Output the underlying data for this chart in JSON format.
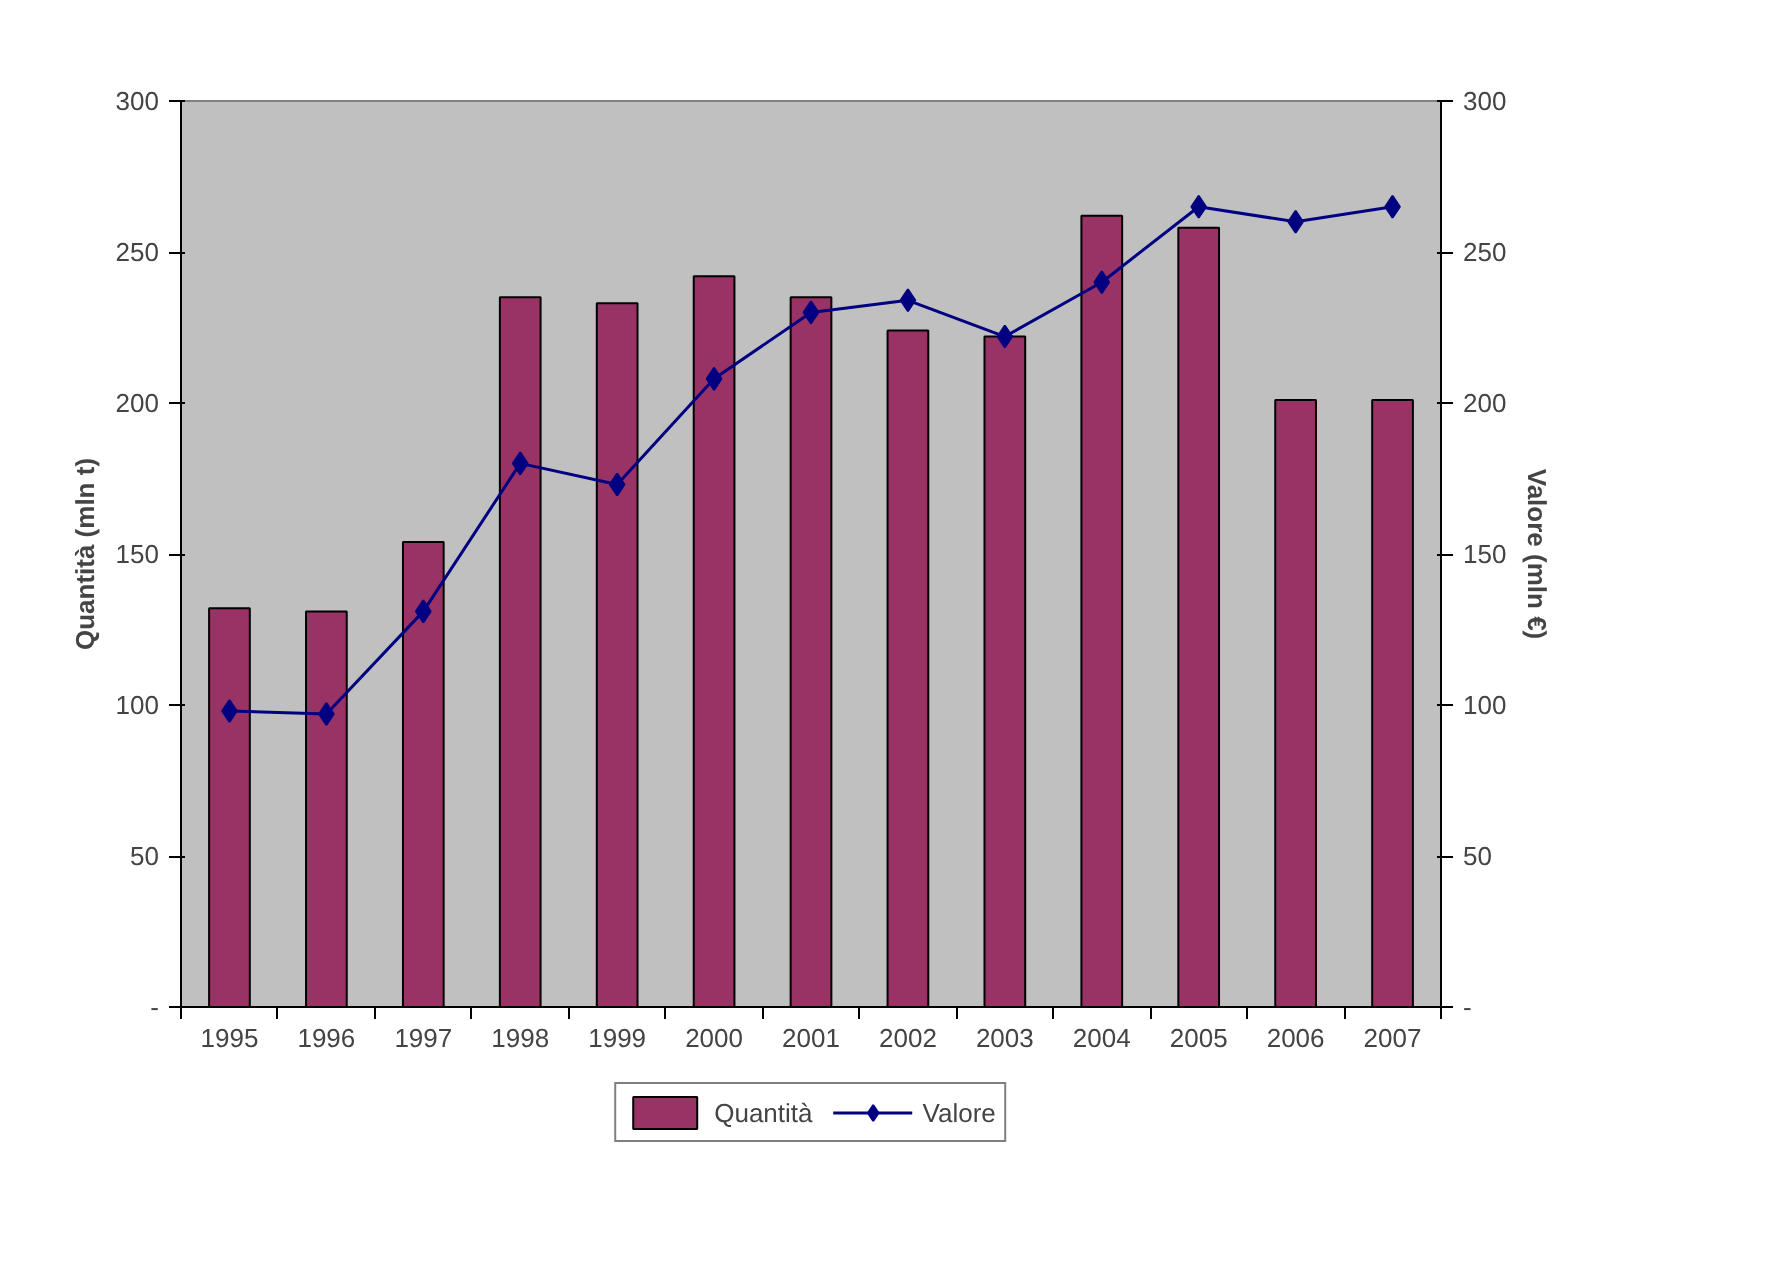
{
  "chart_data": {
    "type": "bar",
    "categories": [
      "1995",
      "1996",
      "1997",
      "1998",
      "1999",
      "2000",
      "2001",
      "2002",
      "2003",
      "2004",
      "2005",
      "2006",
      "2007"
    ],
    "ylabel": "Quantità (mln t)",
    "y2label": "Valore (mln €)",
    "series": [
      {
        "name": "Quantità",
        "type": "bar",
        "color": "#993366",
        "values": [
          132,
          131,
          154,
          235,
          233,
          242,
          235,
          224,
          222,
          262,
          258,
          201,
          201
        ]
      },
      {
        "name": "Valore",
        "type": "line",
        "axis": "y2",
        "color": "#000080",
        "marker": "diamond",
        "values": [
          98,
          97,
          131,
          180,
          173,
          208,
          230,
          234,
          222,
          240,
          265,
          260,
          265
        ]
      }
    ],
    "ylim": [
      0,
      300
    ],
    "yticks": [
      {
        "value": 0,
        "label": "-"
      },
      50,
      100,
      150,
      200,
      250,
      300
    ],
    "y2lim": [
      0,
      300
    ],
    "y2ticks": [
      {
        "value": 0,
        "label": "-"
      },
      50,
      100,
      150,
      200,
      250,
      300
    ],
    "grid": false,
    "legend": "bottom"
  }
}
